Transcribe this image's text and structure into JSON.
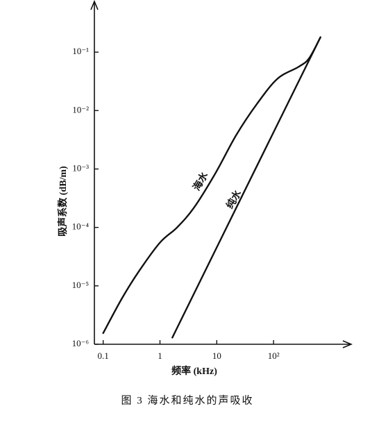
{
  "chart_data": {
    "type": "line",
    "title": "图 3  海水和纯水的声吸收",
    "x_label": "频率 (kHz)",
    "y_label": "吸声系数 (dB/m)",
    "xscale": "log",
    "yscale": "log",
    "xlim": [
      0.07,
      2200
    ],
    "ylim": [
      1e-06,
      0.7
    ],
    "xticks": [
      0.1,
      1,
      10,
      {
        "value": 100,
        "label": "10²"
      }
    ],
    "yticks": [
      {
        "value": 1e-06,
        "label": "10⁻⁶"
      },
      {
        "value": 1e-05,
        "label": "10⁻⁵"
      },
      {
        "value": 0.0001,
        "label": "10⁻⁴"
      },
      {
        "value": 0.001,
        "label": "10⁻³"
      },
      {
        "value": 0.01,
        "label": "10⁻²"
      },
      {
        "value": 0.1,
        "label": "10⁻¹"
      }
    ],
    "series": [
      {
        "name": "海水",
        "color": "#111111",
        "x": [
          0.1,
          0.214,
          0.43,
          1,
          2,
          4,
          9.5,
          22,
          51,
          117,
          275,
          420,
          670
        ],
        "values": [
          1.55e-06,
          6.1e-06,
          1.8e-05,
          5.5e-05,
          0.0001,
          0.00022,
          0.00085,
          0.0038,
          0.013,
          0.035,
          0.056,
          0.078,
          0.18
        ]
      },
      {
        "name": "纯水",
        "color": "#111111",
        "x": [
          1.65,
          33,
          670
        ],
        "values": [
          1.3e-06,
          0.00048,
          0.18
        ]
      }
    ]
  }
}
